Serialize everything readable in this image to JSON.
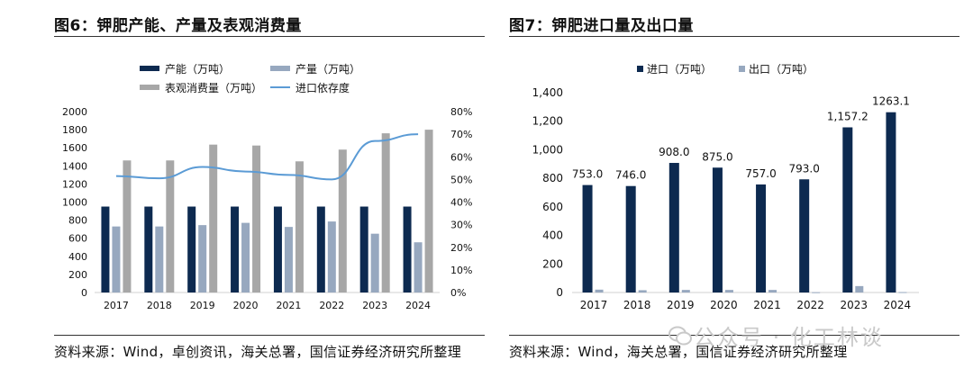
{
  "charts": [
    {
      "title": "图6：钾肥产能、产量及表观消费量",
      "source": "资料来源：Wind，卓创资讯，海关总署，国信证券经济研究所整理"
    },
    {
      "title": "图7：钾肥进口量及出口量",
      "source": "资料来源：Wind，海关总署，国信证券经济研究所整理"
    }
  ],
  "watermark": "公众号 · 化工林谈",
  "colors": {
    "capacity": "#0d2a50",
    "production": "#97a8bf",
    "consumption": "#a7a7a7",
    "import_ratio": "#5b9bd5",
    "import": "#0d2a50",
    "export": "#97a8bf"
  },
  "chart_data": [
    {
      "type": "bar",
      "title": "图6：钾肥产能、产量及表观消费量",
      "categories": [
        "2017",
        "2018",
        "2019",
        "2020",
        "2021",
        "2022",
        "2023",
        "2024"
      ],
      "ylim": [
        0,
        2000
      ],
      "yticks": [
        "0",
        "200",
        "400",
        "600",
        "800",
        "1000",
        "1200",
        "1400",
        "1600",
        "1800",
        "2000"
      ],
      "y2lim": [
        0,
        80
      ],
      "y2ticks": [
        "0%",
        "10%",
        "20%",
        "30%",
        "40%",
        "50%",
        "60%",
        "70%",
        "80%"
      ],
      "legend_position": "top",
      "series": [
        {
          "name": "产能（万吨）",
          "type": "bar",
          "values": [
            950,
            950,
            950,
            950,
            950,
            950,
            950,
            950
          ]
        },
        {
          "name": "产量（万吨）",
          "type": "bar",
          "values": [
            730,
            730,
            745,
            770,
            725,
            785,
            650,
            555
          ]
        },
        {
          "name": "表观消费量（万吨）",
          "type": "bar",
          "values": [
            1460,
            1460,
            1635,
            1625,
            1450,
            1580,
            1760,
            1800
          ]
        },
        {
          "name": "进口依存度",
          "type": "line",
          "axis": "right",
          "unit": "%",
          "values": [
            51.5,
            50.5,
            55.5,
            53.5,
            52,
            50,
            67,
            70
          ]
        }
      ]
    },
    {
      "type": "bar",
      "title": "图7：钾肥进口量及出口量",
      "categories": [
        "2017",
        "2018",
        "2019",
        "2020",
        "2021",
        "2022",
        "2023",
        "2024"
      ],
      "ylim": [
        0,
        1400
      ],
      "yticks": [
        "0",
        "200",
        "400",
        "600",
        "800",
        "1,000",
        "1,200",
        "1,400"
      ],
      "legend_position": "top",
      "series": [
        {
          "name": "进口（万吨）",
          "values": [
            753.0,
            746.0,
            908.0,
            875.0,
            757.0,
            793.0,
            1157.2,
            1263.1
          ],
          "labels": [
            "753.0",
            "746.0",
            "908.0",
            "875.0",
            "757.0",
            "793.0",
            "1,157.2",
            "1263.1"
          ]
        },
        {
          "name": "出口（万吨）",
          "values": [
            20,
            16,
            18,
            18,
            18,
            2,
            45,
            3
          ]
        }
      ]
    }
  ]
}
